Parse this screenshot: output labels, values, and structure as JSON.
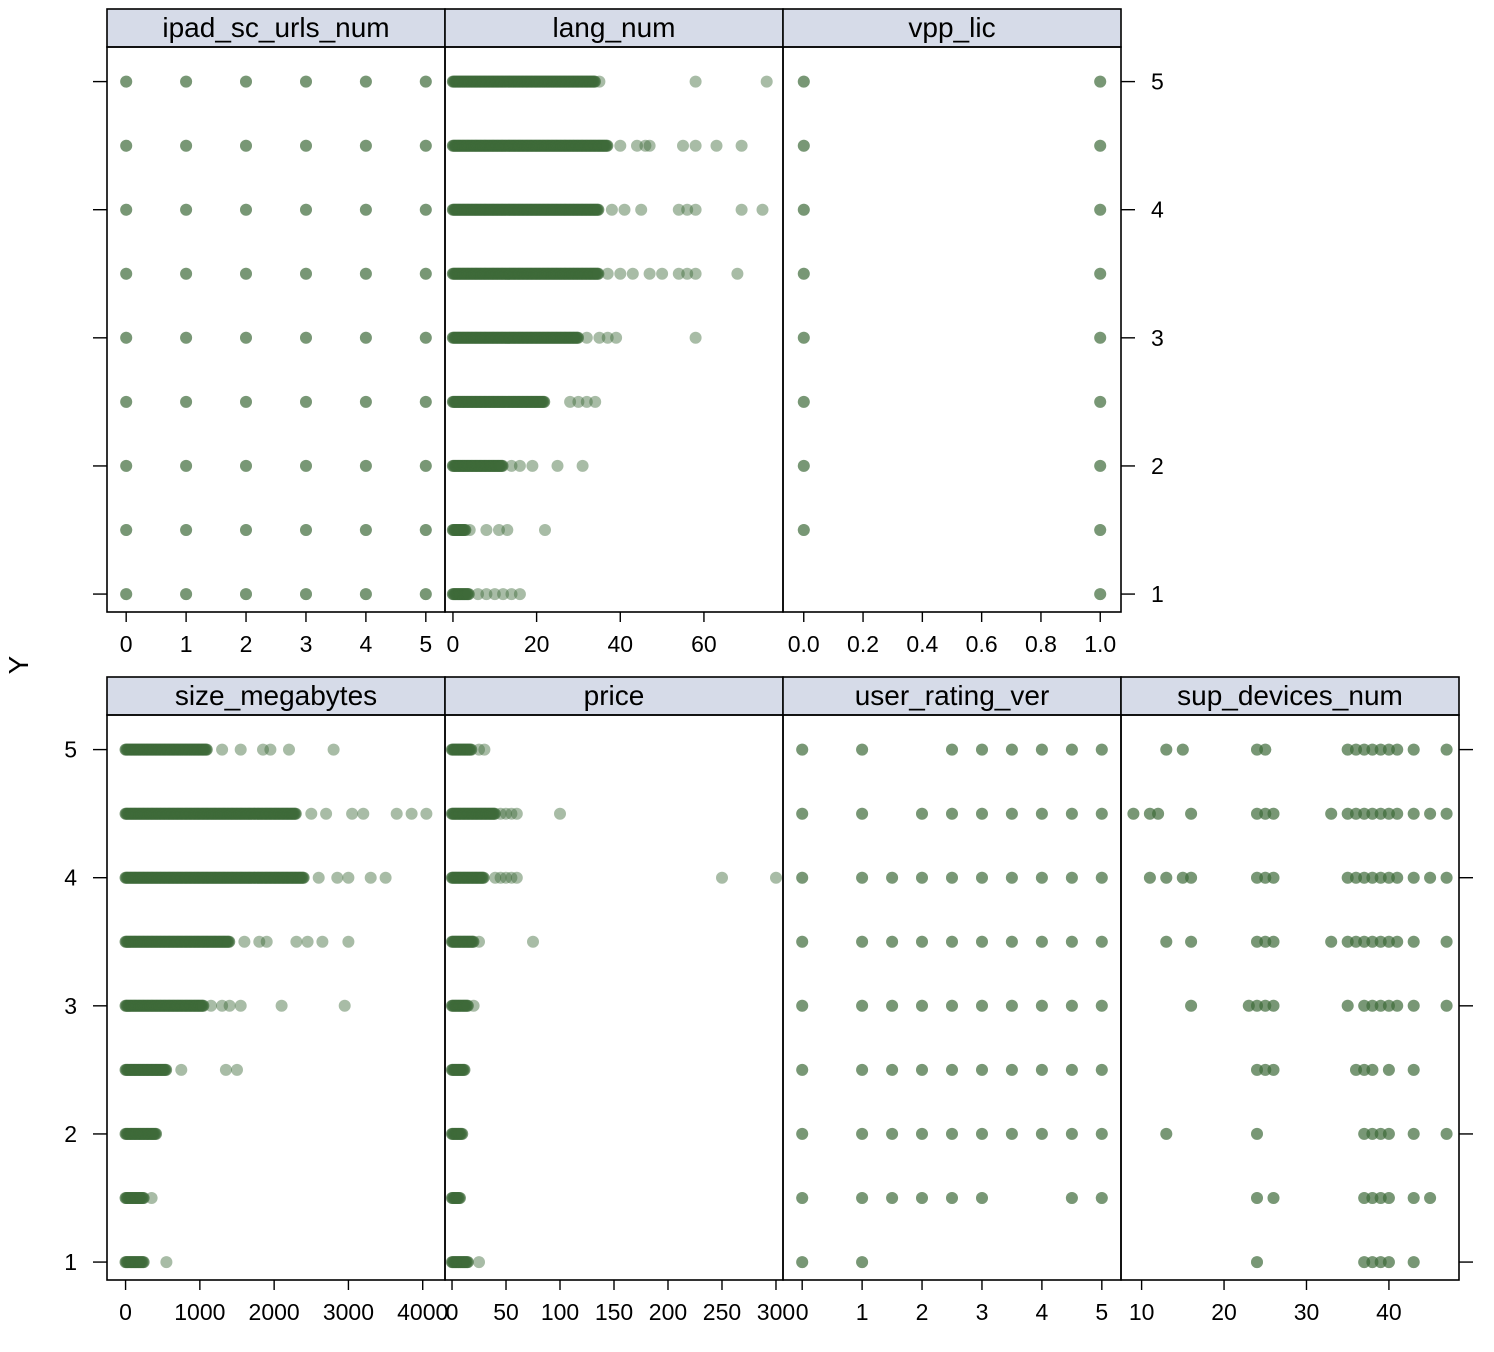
{
  "colors": {
    "strip_fill": "#d6dbe8",
    "point": "#3f6b3a",
    "frame": "#000000",
    "background": "#ffffff"
  },
  "chart_data": {
    "type": "scatter",
    "ylabel": "Y",
    "ylim": [
      0.86,
      5.27
    ],
    "y_levels": [
      1,
      1.5,
      2,
      2.5,
      3,
      3.5,
      4,
      4.5,
      5
    ],
    "y_tick_labels": [
      "1",
      "2",
      "3",
      "4",
      "5"
    ],
    "point_alpha": 0.45,
    "panels": [
      {
        "name": "ipad_sc_urls_num",
        "xlim": [
          -0.32,
          5.32
        ],
        "x_ticks": [
          "0",
          "1",
          "2",
          "3",
          "4",
          "5"
        ],
        "points": [
          {
            "x": 0,
            "ys": [
              1,
              1.5,
              2,
              2.5,
              3,
              3.5,
              4,
              4.5,
              5
            ]
          },
          {
            "x": 1,
            "ys": [
              1,
              1.5,
              2,
              2.5,
              3,
              3.5,
              4,
              4.5,
              5
            ]
          },
          {
            "x": 2,
            "ys": [
              1,
              1.5,
              2,
              2.5,
              3,
              3.5,
              4,
              4.5,
              5
            ]
          },
          {
            "x": 3,
            "ys": [
              1,
              1.5,
              2,
              2.5,
              3,
              3.5,
              4,
              4.5,
              5
            ]
          },
          {
            "x": 4,
            "ys": [
              1,
              1.5,
              2,
              2.5,
              3,
              3.5,
              4,
              4.5,
              5
            ]
          },
          {
            "x": 5,
            "ys": [
              1,
              1.5,
              2,
              2.5,
              3,
              3.5,
              4,
              4.5,
              5
            ]
          }
        ]
      },
      {
        "name": "lang_num",
        "xlim": [
          -1.9,
          78.9
        ],
        "x_ticks": [
          "0",
          "20",
          "40",
          "60"
        ],
        "rows": [
          {
            "y": 5,
            "dense": [
              0,
              34
            ],
            "extra": [
              35,
              58,
              75
            ]
          },
          {
            "y": 4.5,
            "dense": [
              0,
              37
            ],
            "extra": [
              40,
              44,
              46,
              47,
              55,
              58,
              63,
              69
            ]
          },
          {
            "y": 4,
            "dense": [
              0,
              35
            ],
            "extra": [
              38,
              41,
              45,
              54,
              56,
              58,
              69,
              74
            ]
          },
          {
            "y": 3.5,
            "dense": [
              0,
              35
            ],
            "extra": [
              37,
              40,
              43,
              47,
              50,
              54,
              56,
              58,
              68
            ]
          },
          {
            "y": 3,
            "dense": [
              0,
              30
            ],
            "extra": [
              32,
              35,
              37,
              39,
              58
            ]
          },
          {
            "y": 2.5,
            "dense": [
              0,
              22
            ],
            "extra": [
              28,
              30,
              32,
              34
            ]
          },
          {
            "y": 2,
            "dense": [
              0,
              12
            ],
            "extra": [
              14,
              16,
              19,
              25,
              31
            ]
          },
          {
            "y": 1.5,
            "dense": [
              0,
              3
            ],
            "extra": [
              4,
              8,
              11,
              13,
              22
            ]
          },
          {
            "y": 1,
            "dense": [
              0,
              4
            ],
            "extra": [
              6,
              8,
              10,
              12,
              14,
              16
            ]
          }
        ]
      },
      {
        "name": "vpp_lic",
        "xlim": [
          -0.07,
          1.07
        ],
        "x_ticks": [
          "0.0",
          "0.2",
          "0.4",
          "0.6",
          "0.8",
          "1.0"
        ],
        "points": [
          {
            "x": 0,
            "ys": [
              1.5,
              2,
              2.5,
              3,
              3.5,
              4,
              4.5,
              5
            ]
          },
          {
            "x": 1,
            "ys": [
              1,
              1.5,
              2,
              2.5,
              3,
              3.5,
              4,
              4.5,
              5
            ]
          }
        ]
      },
      {
        "name": "size_megabytes",
        "xlim": [
          -250,
          4300
        ],
        "x_ticks": [
          "0",
          "1000",
          "2000",
          "3000",
          "4000"
        ],
        "rows": [
          {
            "y": 5,
            "dense": [
              0,
              1100
            ],
            "extra": [
              1300,
              1550,
              1850,
              1950,
              2200,
              2800
            ]
          },
          {
            "y": 4.5,
            "dense": [
              0,
              2300
            ],
            "extra": [
              2500,
              2700,
              3050,
              3200,
              3650,
              3850,
              4050
            ]
          },
          {
            "y": 4,
            "dense": [
              0,
              2400
            ],
            "extra": [
              2600,
              2850,
              3000,
              3300,
              3500
            ]
          },
          {
            "y": 3.5,
            "dense": [
              0,
              1400
            ],
            "extra": [
              1600,
              1800,
              1900,
              2300,
              2450,
              2650,
              3000
            ]
          },
          {
            "y": 3,
            "dense": [
              0,
              1050
            ],
            "extra": [
              1150,
              1300,
              1400,
              1550,
              2100,
              2950
            ]
          },
          {
            "y": 2.5,
            "dense": [
              0,
              550
            ],
            "extra": [
              750,
              1350,
              1500
            ]
          },
          {
            "y": 2,
            "dense": [
              0,
              420
            ],
            "extra": []
          },
          {
            "y": 1.5,
            "dense": [
              0,
              250
            ],
            "extra": [
              350
            ]
          },
          {
            "y": 1,
            "dense": [
              0,
              250
            ],
            "extra": [
              550
            ]
          }
        ]
      },
      {
        "name": "price",
        "xlim": [
          -6.5,
          306.5
        ],
        "x_ticks": [
          "0",
          "50",
          "100",
          "150",
          "200",
          "250",
          "300"
        ],
        "rows": [
          {
            "y": 5,
            "dense": [
              0,
              18
            ],
            "extra": [
              25,
              30
            ]
          },
          {
            "y": 4.5,
            "dense": [
              0,
              40
            ],
            "extra": [
              45,
              50,
              55,
              60,
              100
            ]
          },
          {
            "y": 4,
            "dense": [
              0,
              30
            ],
            "extra": [
              40,
              45,
              50,
              55,
              60,
              250,
              300
            ]
          },
          {
            "y": 3.5,
            "dense": [
              0,
              20
            ],
            "extra": [
              25,
              75
            ]
          },
          {
            "y": 3,
            "dense": [
              0,
              15
            ],
            "extra": [
              20
            ]
          },
          {
            "y": 2.5,
            "dense": [
              0,
              12
            ],
            "extra": []
          },
          {
            "y": 2,
            "dense": [
              0,
              10
            ],
            "extra": []
          },
          {
            "y": 1.5,
            "dense": [
              0,
              8
            ],
            "extra": []
          },
          {
            "y": 1,
            "dense": [
              0,
              15
            ],
            "extra": [
              25
            ]
          }
        ]
      },
      {
        "name": "user_rating_ver",
        "xlim": [
          -0.32,
          5.32
        ],
        "x_ticks": [
          "0",
          "1",
          "2",
          "3",
          "4",
          "5"
        ],
        "points": [
          {
            "x": 0,
            "ys": [
              1,
              1.5,
              2,
              2.5,
              3,
              3.5,
              4,
              4.5,
              5
            ]
          },
          {
            "x": 1,
            "ys": [
              1,
              1.5,
              2,
              2.5,
              3,
              3.5,
              4,
              4.5,
              5
            ]
          },
          {
            "x": 1.5,
            "ys": [
              1.5,
              2,
              2.5,
              3,
              3.5,
              4
            ]
          },
          {
            "x": 2,
            "ys": [
              1.5,
              2,
              2.5,
              3,
              3.5,
              4,
              4.5
            ]
          },
          {
            "x": 2.5,
            "ys": [
              1.5,
              2,
              2.5,
              3,
              3.5,
              4,
              4.5,
              5
            ]
          },
          {
            "x": 3,
            "ys": [
              1.5,
              2,
              2.5,
              3,
              3.5,
              4,
              4.5,
              5
            ]
          },
          {
            "x": 3.5,
            "ys": [
              2,
              2.5,
              3,
              3.5,
              4,
              4.5,
              5
            ]
          },
          {
            "x": 4,
            "ys": [
              2,
              2.5,
              3,
              3.5,
              4,
              4.5,
              5
            ]
          },
          {
            "x": 4.5,
            "ys": [
              1.5,
              2,
              2.5,
              3,
              3.5,
              4,
              4.5,
              5
            ]
          },
          {
            "x": 5,
            "ys": [
              1.5,
              2,
              2.5,
              3,
              3.5,
              4,
              4.5,
              5
            ]
          }
        ]
      },
      {
        "name": "sup_devices_num",
        "xlim": [
          7.5,
          48.5
        ],
        "x_ticks": [
          "10",
          "20",
          "30",
          "40"
        ],
        "points": [
          {
            "x": 9,
            "ys": [
              4.5
            ]
          },
          {
            "x": 11,
            "ys": [
              4,
              4.5
            ]
          },
          {
            "x": 12,
            "ys": [
              4.5
            ]
          },
          {
            "x": 13,
            "ys": [
              2,
              3.5,
              4,
              5
            ]
          },
          {
            "x": 15,
            "ys": [
              4,
              5
            ]
          },
          {
            "x": 16,
            "ys": [
              3,
              3.5,
              4,
              4.5
            ]
          },
          {
            "x": 23,
            "ys": [
              3
            ]
          },
          {
            "x": 24,
            "ys": [
              1,
              1.5,
              2,
              2.5,
              3,
              3.5,
              4,
              4.5,
              5
            ]
          },
          {
            "x": 25,
            "ys": [
              2.5,
              3,
              3.5,
              4,
              4.5,
              5
            ]
          },
          {
            "x": 26,
            "ys": [
              1.5,
              2.5,
              3,
              3.5,
              4,
              4.5
            ]
          },
          {
            "x": 33,
            "ys": [
              3.5,
              4.5
            ]
          },
          {
            "x": 35,
            "ys": [
              3,
              3.5,
              4,
              4.5,
              5
            ]
          },
          {
            "x": 36,
            "ys": [
              2.5,
              3.5,
              4,
              4.5,
              5
            ]
          },
          {
            "x": 37,
            "ys": [
              1,
              1.5,
              2,
              2.5,
              3,
              3.5,
              4,
              4.5,
              5
            ]
          },
          {
            "x": 38,
            "ys": [
              1,
              1.5,
              2,
              2.5,
              3,
              3.5,
              4,
              4.5,
              5
            ]
          },
          {
            "x": 39,
            "ys": [
              1,
              1.5,
              2,
              3,
              3.5,
              4,
              4.5,
              5
            ]
          },
          {
            "x": 40,
            "ys": [
              1,
              1.5,
              2,
              2.5,
              3,
              3.5,
              4,
              4.5,
              5
            ]
          },
          {
            "x": 41,
            "ys": [
              3,
              3.5,
              4,
              4.5,
              5
            ]
          },
          {
            "x": 43,
            "ys": [
              1,
              1.5,
              2,
              2.5,
              3,
              3.5,
              4,
              4.5,
              5
            ]
          },
          {
            "x": 45,
            "ys": [
              1.5,
              4,
              4.5
            ]
          },
          {
            "x": 47,
            "ys": [
              2,
              3,
              3.5,
              4,
              4.5,
              5
            ]
          }
        ]
      }
    ]
  }
}
